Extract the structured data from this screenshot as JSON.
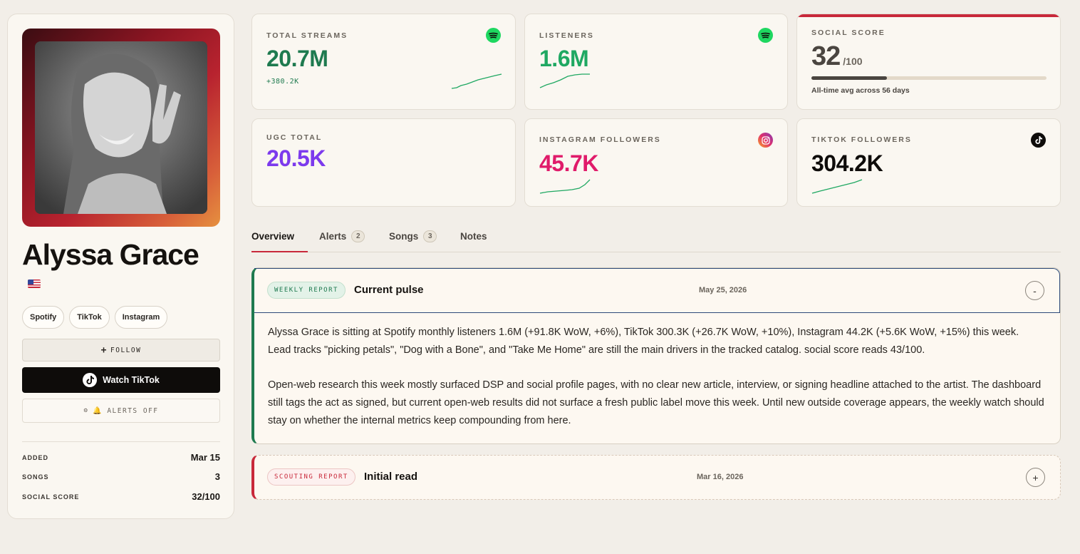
{
  "artist": {
    "name": "Alyssa Grace",
    "flag": "us-flag",
    "platform_chips": [
      "Spotify",
      "TikTok",
      "Instagram"
    ]
  },
  "actions": {
    "follow_label": "FOLLOW",
    "watch_label": "Watch TikTok",
    "alerts_label": "ALERTS OFF"
  },
  "meta": [
    {
      "label": "ADDED",
      "value": "Mar 15"
    },
    {
      "label": "SONGS",
      "value": "3"
    },
    {
      "label": "SOCIAL SCORE",
      "value": "32/100"
    }
  ],
  "stats": {
    "total_streams": {
      "label": "TOTAL STREAMS",
      "value": "20.7M",
      "delta": "+380.2K",
      "icon": "spotify-icon",
      "color": "#1e7a4f"
    },
    "listeners": {
      "label": "LISTENERS",
      "value": "1.6M",
      "icon": "spotify-icon",
      "color": "#1fa862"
    },
    "social_score": {
      "label": "SOCIAL SCORE",
      "value": "32",
      "suffix": "/100",
      "progress": 0.32,
      "note": "All-time avg across 56 days",
      "color": "#4a4540"
    },
    "ugc_total": {
      "label": "UGC TOTAL",
      "value": "20.5K",
      "color": "#7c3aed"
    },
    "instagram_followers": {
      "label": "INSTAGRAM FOLLOWERS",
      "value": "45.7K",
      "icon": "instagram-icon",
      "color": "#e01b6a"
    },
    "tiktok_followers": {
      "label": "TIKTOK FOLLOWERS",
      "value": "304.2K",
      "icon": "tiktok-icon",
      "color": "#0e0c0a"
    }
  },
  "tabs": [
    {
      "label": "Overview",
      "active": true
    },
    {
      "label": "Alerts",
      "count": "2"
    },
    {
      "label": "Songs",
      "count": "3"
    },
    {
      "label": "Notes"
    }
  ],
  "reports": {
    "weekly": {
      "tag": "WEEKLY REPORT",
      "title": "Current pulse",
      "date": "May 25, 2026",
      "toggle": "-",
      "paragraphs": [
        "Alyssa Grace is sitting at Spotify monthly listeners 1.6M (+91.8K WoW, +6%), TikTok 300.3K (+26.7K WoW, +10%), Instagram 44.2K (+5.6K WoW, +15%) this week. Lead tracks \"picking petals\", \"Dog with a Bone\", and \"Take Me Home\" are still the main drivers in the tracked catalog. social score reads 43/100.",
        "Open-web research this week mostly surfaced DSP and social profile pages, with no clear new article, interview, or signing headline attached to the artist. The dashboard still tags the act as signed, but current open-web results did not surface a fresh public label move this week. Until new outside coverage appears, the weekly watch should stay on whether the internal metrics keep compounding from here."
      ]
    },
    "scouting": {
      "tag": "SCOUTING REPORT",
      "title": "Initial read",
      "date": "Mar 16, 2026",
      "toggle": "+"
    }
  }
}
